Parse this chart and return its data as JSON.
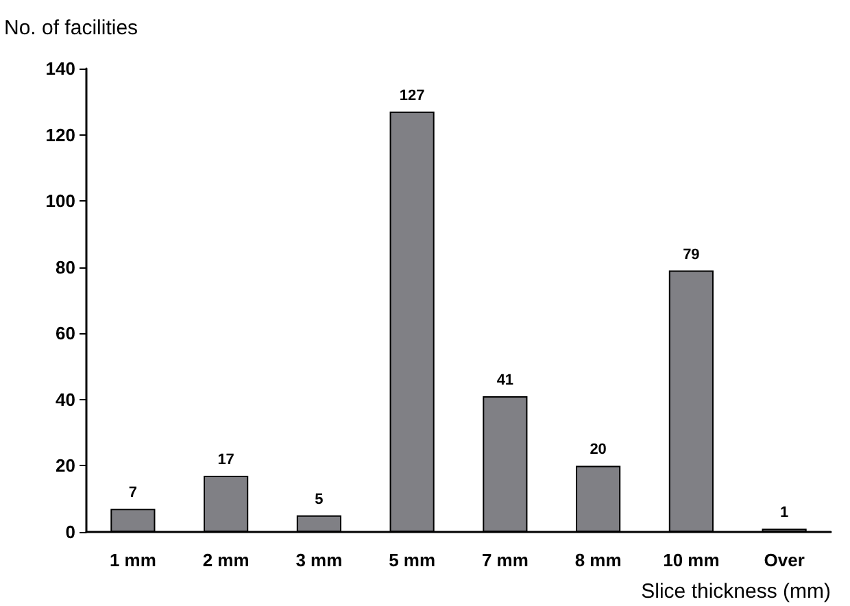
{
  "chart_data": {
    "type": "bar",
    "xlabel": "Slice thickness (mm)",
    "ylabel": "No. of facilities",
    "categories": [
      "1 mm",
      "2 mm",
      "3 mm",
      "5 mm",
      "7 mm",
      "8 mm",
      "10 mm",
      "Over"
    ],
    "values": [
      7,
      17,
      5,
      127,
      41,
      20,
      79,
      1
    ],
    "color": "#808085",
    "ylim": [
      0,
      140
    ],
    "yticks": [
      0,
      20,
      40,
      60,
      80,
      100,
      120,
      140
    ],
    "data_labels": true
  }
}
